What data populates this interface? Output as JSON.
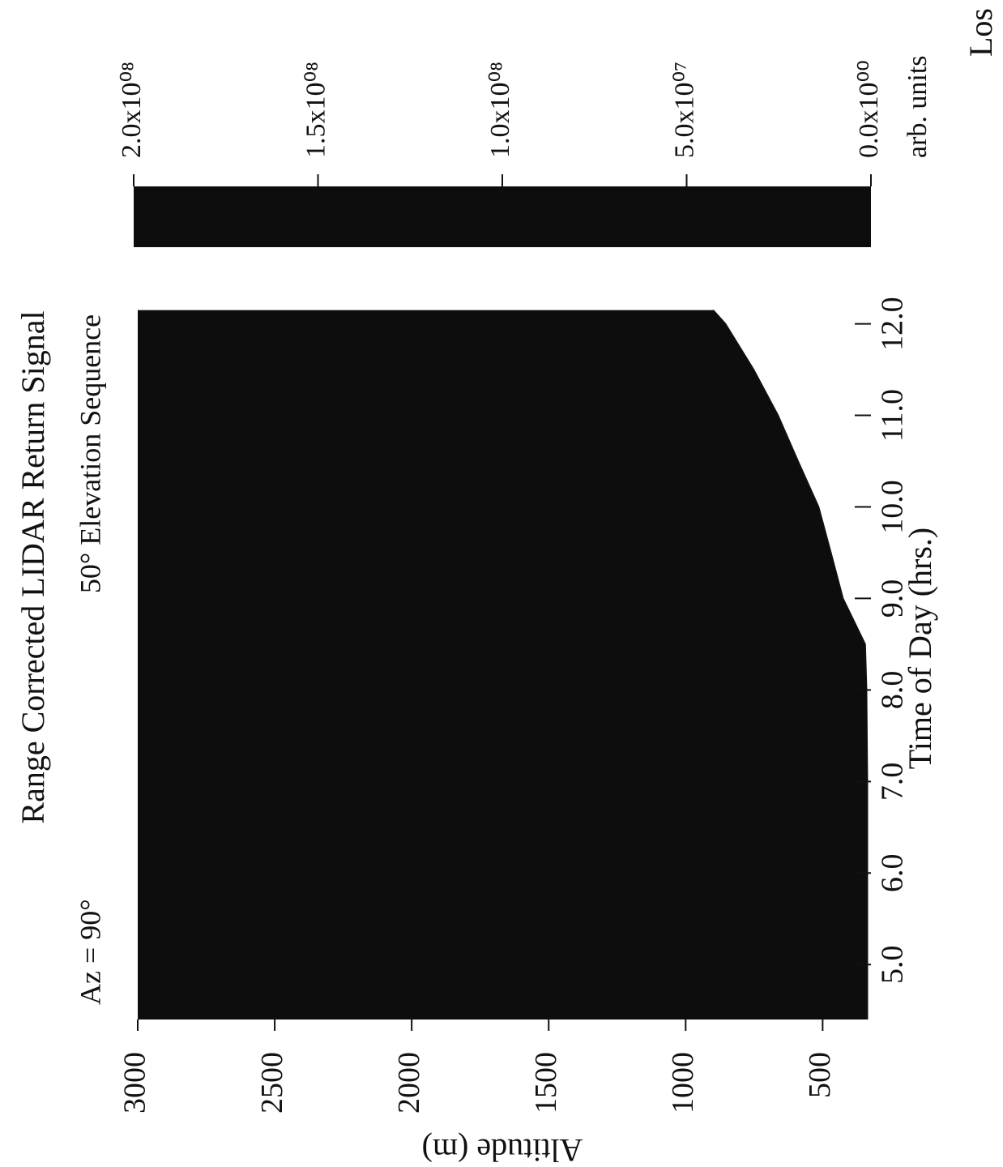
{
  "chart_data": {
    "type": "heatmap",
    "title": "Range Corrected LIDAR Return Signal",
    "subtitle": "50° Elevation Sequence",
    "annotation": "Az = 90°",
    "x_label": "Time of Day (hrs.)",
    "y_label": "Altitude (m)",
    "xlim": [
      4.4,
      12.2
    ],
    "xticks": [
      {
        "value": 5,
        "label": "5.0"
      },
      {
        "value": 6,
        "label": "6.0"
      },
      {
        "value": 7,
        "label": "7.0"
      },
      {
        "value": 8,
        "label": "8.0"
      },
      {
        "value": 9,
        "label": "9.0"
      },
      {
        "value": 10,
        "label": "10.0"
      },
      {
        "value": 11,
        "label": "11.0"
      },
      {
        "value": 12,
        "label": "12.0"
      }
    ],
    "ylim": [
      300,
      3000
    ],
    "yticks": [
      500,
      1000,
      1500,
      2000,
      2500,
      3000
    ],
    "x": [
      4.4,
      5,
      6,
      7,
      8,
      8.5,
      9,
      9.5,
      10,
      10.5,
      11,
      11.5,
      12,
      12.15
    ],
    "values": [
      337,
      337,
      337,
      337,
      340,
      345,
      426,
      470,
      515,
      590,
      663,
      752,
      855,
      900
    ],
    "color": "#111111",
    "colorbar": {
      "lim": [
        0,
        200000000
      ],
      "ticks": [
        {
          "value": 0,
          "label": "0.0x10⁰⁰"
        },
        {
          "value": 50000000,
          "label": "5.0x10⁰⁷"
        },
        {
          "value": 100000000,
          "label": "1.0x10⁰⁸"
        },
        {
          "value": 150000000,
          "label": "1.5x10⁰⁸"
        },
        {
          "value": 200000000,
          "label": "2.0x10⁰⁸"
        }
      ],
      "unit": "arb. units"
    },
    "footer": "Los"
  }
}
